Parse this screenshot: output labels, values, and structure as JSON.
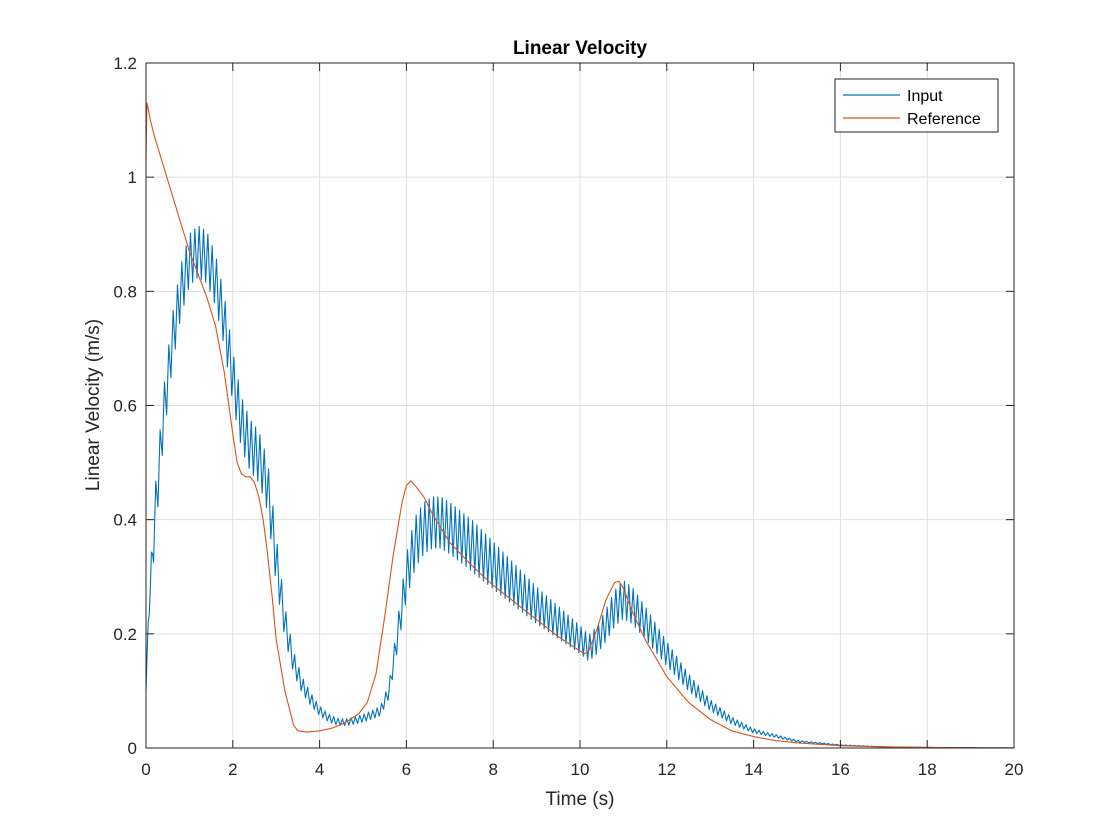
{
  "chart_data": {
    "type": "line",
    "title": "Linear Velocity",
    "xlabel": "Time (s)",
    "ylabel": "Linear Velocity (m/s)",
    "xlim": [
      0,
      20
    ],
    "ylim": [
      0,
      1.2
    ],
    "xticks": [
      0,
      2,
      4,
      6,
      8,
      10,
      12,
      14,
      16,
      18,
      20
    ],
    "yticks": [
      0,
      0.2,
      0.4,
      0.6,
      0.8,
      1,
      1.2
    ],
    "xtick_labels": [
      "0",
      "2",
      "4",
      "6",
      "8",
      "10",
      "12",
      "14",
      "16",
      "18",
      "20"
    ],
    "ytick_labels": [
      "0",
      "0.2",
      "0.4",
      "0.6",
      "0.8",
      "1",
      "1.2"
    ],
    "grid": true,
    "legend_position": "top-right",
    "series": [
      {
        "name": "Input",
        "color": "#0072BD",
        "oscillation_amplitude": 0.045,
        "oscillation_period": 0.1,
        "x": [
          0,
          0.05,
          0.2,
          0.4,
          0.6,
          0.8,
          1.0,
          1.2,
          1.4,
          1.6,
          1.8,
          2.0,
          2.2,
          2.4,
          2.6,
          2.8,
          3.0,
          3.2,
          3.4,
          3.6,
          3.8,
          4.0,
          4.2,
          4.4,
          4.6,
          4.8,
          5.0,
          5.2,
          5.4,
          5.6,
          5.8,
          6.0,
          6.2,
          6.4,
          6.6,
          6.8,
          7.0,
          7.5,
          8.0,
          8.5,
          9.0,
          9.5,
          10.0,
          10.2,
          10.4,
          10.6,
          10.8,
          11.0,
          11.2,
          11.5,
          12.0,
          12.5,
          13.0,
          13.5,
          14.0,
          15.0,
          16.0,
          17.0,
          18.0,
          19.0,
          20.0
        ],
        "y": [
          0.1,
          0.22,
          0.4,
          0.58,
          0.71,
          0.8,
          0.855,
          0.87,
          0.86,
          0.82,
          0.75,
          0.65,
          0.57,
          0.53,
          0.51,
          0.46,
          0.33,
          0.22,
          0.15,
          0.11,
          0.085,
          0.065,
          0.053,
          0.046,
          0.045,
          0.048,
          0.052,
          0.058,
          0.065,
          0.1,
          0.2,
          0.3,
          0.36,
          0.385,
          0.395,
          0.395,
          0.385,
          0.355,
          0.32,
          0.285,
          0.25,
          0.22,
          0.19,
          0.175,
          0.19,
          0.215,
          0.245,
          0.26,
          0.25,
          0.22,
          0.165,
          0.115,
          0.075,
          0.048,
          0.03,
          0.012,
          0.005,
          0.002,
          0.001,
          0.0005,
          0.0002
        ]
      },
      {
        "name": "Reference",
        "color": "#D95319",
        "x": [
          0,
          0.02,
          0.05,
          0.1,
          0.2,
          0.4,
          0.6,
          0.8,
          1.0,
          1.2,
          1.4,
          1.6,
          1.8,
          2.0,
          2.1,
          2.2,
          2.3,
          2.4,
          2.5,
          2.6,
          2.7,
          2.8,
          2.9,
          3.0,
          3.2,
          3.4,
          3.5,
          3.7,
          4.0,
          4.3,
          4.6,
          4.9,
          5.1,
          5.3,
          5.5,
          5.7,
          5.9,
          6.0,
          6.1,
          6.2,
          6.4,
          6.6,
          6.8,
          7.0,
          7.5,
          8.0,
          8.5,
          9.0,
          9.5,
          10.0,
          10.1,
          10.2,
          10.4,
          10.6,
          10.8,
          10.9,
          11.0,
          11.2,
          11.5,
          12.0,
          12.5,
          13.0,
          13.5,
          14.0,
          14.5,
          15.0,
          16.0,
          17.0,
          18.0,
          19.0,
          20.0
        ],
        "y": [
          1.03,
          1.13,
          1.12,
          1.1,
          1.07,
          1.02,
          0.97,
          0.92,
          0.87,
          0.83,
          0.79,
          0.74,
          0.66,
          0.55,
          0.5,
          0.48,
          0.475,
          0.475,
          0.465,
          0.44,
          0.4,
          0.34,
          0.27,
          0.19,
          0.1,
          0.04,
          0.03,
          0.028,
          0.03,
          0.035,
          0.045,
          0.06,
          0.08,
          0.13,
          0.23,
          0.34,
          0.43,
          0.46,
          0.468,
          0.46,
          0.44,
          0.41,
          0.385,
          0.36,
          0.32,
          0.285,
          0.255,
          0.225,
          0.195,
          0.17,
          0.165,
          0.17,
          0.21,
          0.26,
          0.29,
          0.292,
          0.28,
          0.24,
          0.19,
          0.125,
          0.08,
          0.05,
          0.03,
          0.02,
          0.013,
          0.009,
          0.004,
          0.002,
          0.001,
          0.0005,
          0.0002
        ]
      }
    ]
  }
}
